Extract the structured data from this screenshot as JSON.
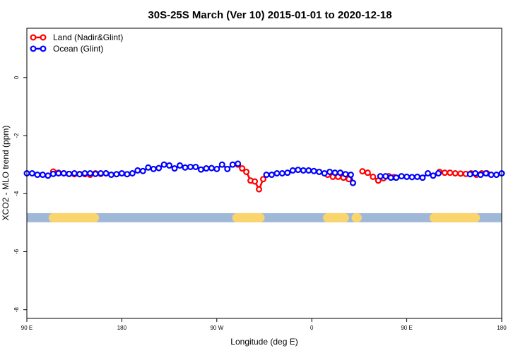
{
  "chart_data": {
    "type": "line",
    "title": "30S-25S March (Ver 10)   2015-01-01 to 2020-12-18",
    "xlabel": "Longitude (deg E)",
    "ylabel": "XCO2 - MLO trend (ppm)",
    "x_ticks": [
      {
        "value": 90,
        "label": "90 E"
      },
      {
        "value": 180,
        "label": "180"
      },
      {
        "value": 270,
        "label": "90 W"
      },
      {
        "value": 360,
        "label": "0"
      },
      {
        "value": 450,
        "label": "90 E"
      },
      {
        "value": 540,
        "label": "180"
      }
    ],
    "y_ticks": [
      {
        "value": 0,
        "label": "0"
      },
      {
        "value": -2,
        "label": "-2"
      },
      {
        "value": -4,
        "label": "-4"
      },
      {
        "value": -6,
        "label": "-6"
      },
      {
        "value": -8,
        "label": "-8"
      }
    ],
    "xlim": [
      90,
      540
    ],
    "ylim": [
      -8.3,
      1.7
    ],
    "grid": false,
    "legend_position": "top-left",
    "series": [
      {
        "name": "Land (Nadir&Glint)",
        "color": "#ff0000",
        "segments": [
          {
            "x": [
              115,
              120,
              125,
              130,
              135,
              140,
              145,
              150,
              155,
              160,
              165
            ],
            "y": [
              -3.24,
              -3.28,
              -3.3,
              -3.32,
              -3.33,
              -3.32,
              -3.33,
              -3.35,
              -3.3,
              -3.32,
              -3.3
            ]
          },
          {
            "x": [
              290,
              294,
              298,
              302,
              306,
              310,
              314
            ],
            "y": [
              -3.0,
              -3.13,
              -3.25,
              -3.55,
              -3.58,
              -3.85,
              -3.5
            ]
          },
          {
            "x": [
              375,
              380,
              385,
              390,
              395,
              399
            ],
            "y": [
              -3.35,
              -3.42,
              -3.42,
              -3.45,
              -3.5,
              -3.63
            ]
          },
          {
            "x": [
              408,
              413,
              418,
              423,
              428,
              433,
              438
            ],
            "y": [
              -3.23,
              -3.28,
              -3.42,
              -3.55,
              -3.47,
              -3.4,
              -3.43
            ]
          },
          {
            "x": [
              481,
              486,
              491,
              496,
              501,
              506,
              511,
              516,
              521,
              526
            ],
            "y": [
              -3.25,
              -3.28,
              -3.28,
              -3.3,
              -3.31,
              -3.32,
              -3.3,
              -3.35,
              -3.3,
              -3.3
            ]
          }
        ]
      },
      {
        "name": "Ocean (Glint)",
        "color": "#0000ff",
        "segments": [
          {
            "x": [
              90,
              95,
              100,
              105,
              110,
              115,
              120,
              125,
              130,
              135,
              140,
              145,
              150,
              155,
              160,
              165,
              170,
              175,
              180,
              185,
              190,
              195,
              200,
              205,
              210,
              215,
              220,
              225,
              230,
              235,
              240,
              245,
              250,
              255,
              260,
              265,
              270,
              275,
              280,
              285,
              290
            ],
            "y": [
              -3.3,
              -3.3,
              -3.35,
              -3.35,
              -3.38,
              -3.32,
              -3.3,
              -3.3,
              -3.32,
              -3.3,
              -3.33,
              -3.3,
              -3.3,
              -3.32,
              -3.3,
              -3.3,
              -3.35,
              -3.33,
              -3.3,
              -3.33,
              -3.3,
              -3.2,
              -3.22,
              -3.1,
              -3.15,
              -3.12,
              -3.0,
              -3.03,
              -3.13,
              -3.03,
              -3.1,
              -3.08,
              -3.08,
              -3.17,
              -3.13,
              -3.12,
              -3.15,
              -3.0,
              -3.15,
              -3.0,
              -2.97
            ]
          },
          {
            "x": [
              317,
              322,
              327,
              332,
              337,
              342,
              347,
              352,
              357,
              362,
              367,
              372,
              377,
              382,
              387,
              392,
              397,
              399
            ],
            "y": [
              -3.35,
              -3.35,
              -3.3,
              -3.3,
              -3.28,
              -3.2,
              -3.18,
              -3.2,
              -3.2,
              -3.22,
              -3.25,
              -3.3,
              -3.25,
              -3.28,
              -3.28,
              -3.33,
              -3.35,
              -3.63
            ]
          },
          {
            "x": [
              425,
              430,
              435,
              440,
              445,
              450,
              455,
              460,
              465,
              470,
              475,
              480
            ],
            "y": [
              -3.4,
              -3.4,
              -3.45,
              -3.45,
              -3.4,
              -3.42,
              -3.43,
              -3.42,
              -3.45,
              -3.3,
              -3.38,
              -3.3
            ]
          },
          {
            "x": [
              510,
              515,
              520,
              525,
              530,
              535,
              540
            ],
            "y": [
              -3.33,
              -3.3,
              -3.35,
              -3.3,
              -3.35,
              -3.35,
              -3.3
            ]
          }
        ]
      }
    ],
    "band": {
      "y": -4.83,
      "color": "#a0b8d8",
      "highlight_color": "#fad46c",
      "highlights": [
        [
          115,
          154
        ],
        [
          289,
          311
        ],
        [
          375,
          391
        ],
        [
          402,
          403
        ],
        [
          476,
          515
        ]
      ]
    }
  }
}
